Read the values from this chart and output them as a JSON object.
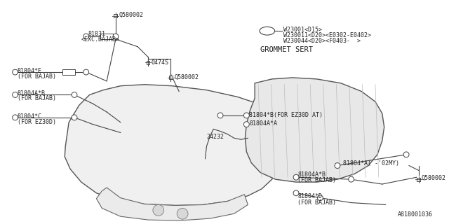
{
  "bg_color": "#ffffff",
  "line_color": "#444444",
  "text_color": "#222222",
  "fig_id": "A818001036",
  "top_right_labels": [
    "W23001<D15>",
    "W230011<D20><E0302-E0402>",
    "W230044<D20><F0403-  >"
  ],
  "grommet_label": "GROMMET SERT"
}
